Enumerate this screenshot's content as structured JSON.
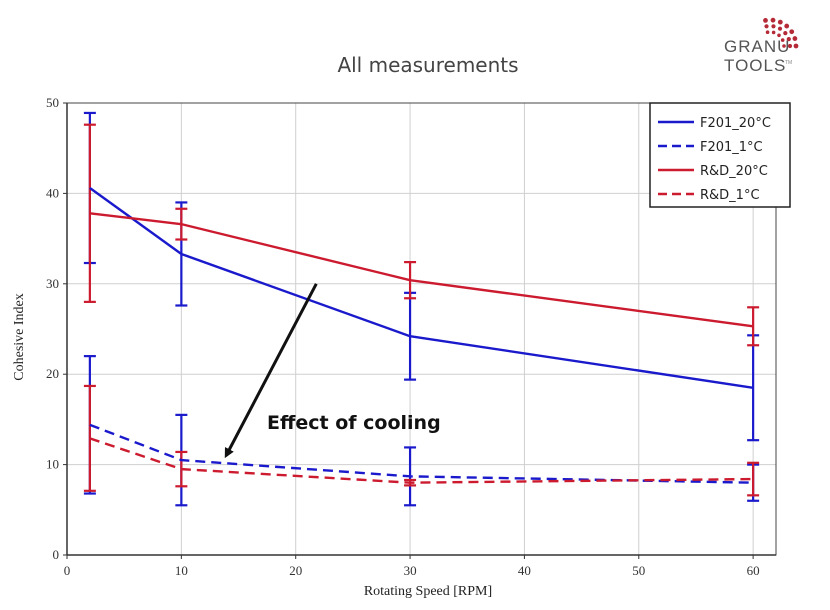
{
  "logo": {
    "line1": "GRANU",
    "line2": "TOOLS",
    "tm": "TM",
    "dot_color": "#b52a37"
  },
  "chart_data": {
    "type": "line",
    "title": "All measurements",
    "xlabel": "Rotating Speed [RPM]",
    "ylabel": "Cohesive Index",
    "xlim": [
      0,
      62
    ],
    "ylim": [
      0,
      50
    ],
    "xticks": [
      0,
      10,
      20,
      30,
      40,
      50,
      60
    ],
    "yticks": [
      0,
      10,
      20,
      30,
      40,
      50
    ],
    "grid": true,
    "legend_position": "top-right",
    "x": [
      2,
      10,
      30,
      60
    ],
    "series": [
      {
        "name": "F201_20°C",
        "color": "#1a1acc",
        "dash": "solid",
        "values": [
          40.6,
          33.3,
          24.2,
          18.5
        ],
        "errors": [
          8.3,
          5.7,
          4.8,
          5.8
        ]
      },
      {
        "name": "F201_1°C",
        "color": "#1a1acc",
        "dash": "dashed",
        "values": [
          14.4,
          10.5,
          8.7,
          8.0
        ],
        "errors": [
          7.6,
          5.0,
          3.2,
          2.0
        ]
      },
      {
        "name": "R&D_20°C",
        "color": "#cc1a2e",
        "dash": "solid",
        "values": [
          37.8,
          36.6,
          30.4,
          25.3
        ],
        "errors": [
          9.8,
          1.7,
          2.0,
          2.1
        ]
      },
      {
        "name": "R&D_1°C",
        "color": "#cc1a2e",
        "dash": "dashed",
        "values": [
          12.9,
          9.5,
          8.0,
          8.4
        ],
        "errors": [
          5.8,
          1.9,
          0.3,
          1.8
        ]
      }
    ],
    "annotation": {
      "text": "Effect of cooling",
      "arrow_from": [
        21.8,
        30
      ],
      "arrow_to": [
        14,
        11.2
      ]
    }
  }
}
